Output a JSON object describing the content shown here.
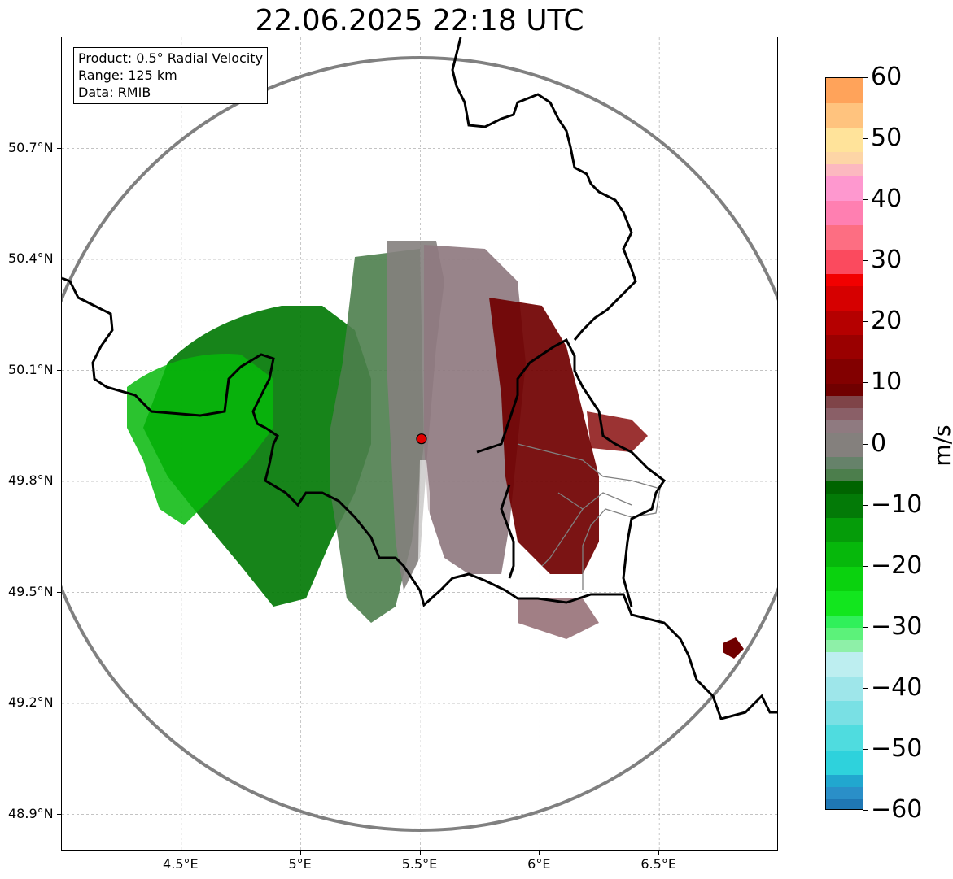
{
  "title": "22.06.2025 22:18 UTC",
  "info": {
    "product": "Product: 0.5° Radial Velocity",
    "range": "Range: 125 km",
    "data": "Data: RMIB"
  },
  "axes": {
    "lat_ticks": [
      "50.7°N",
      "50.4°N",
      "50.1°N",
      "49.8°N",
      "49.5°N",
      "49.2°N",
      "48.9°N"
    ],
    "lon_ticks": [
      "4.5°E",
      "5°E",
      "5.5°E",
      "6°E",
      "6.5°E"
    ],
    "lat_values": [
      50.7,
      50.4,
      50.1,
      49.8,
      49.5,
      49.2,
      48.9
    ],
    "lon_values": [
      4.5,
      5.0,
      5.5,
      6.0,
      6.5
    ],
    "lon_range": [
      4.0,
      7.0
    ],
    "lat_range": [
      48.8,
      51.0
    ]
  },
  "radar": {
    "lon": 5.505,
    "lat": 49.915,
    "marker_color": "#e00000"
  },
  "colorbar": {
    "unit": "m/s",
    "min": -60,
    "max": 60,
    "tick_labels": [
      "60",
      "50",
      "40",
      "30",
      "20",
      "10",
      "0",
      "−10",
      "−20",
      "−30",
      "−40",
      "−50",
      "−60"
    ],
    "tick_values": [
      60,
      50,
      40,
      30,
      20,
      10,
      0,
      -10,
      -20,
      -30,
      -40,
      -50,
      -60
    ],
    "bands": [
      {
        "from": -60,
        "to": -58,
        "color": "#1f77b4"
      },
      {
        "from": -58,
        "to": -56,
        "color": "#2a8fc8"
      },
      {
        "from": -56,
        "to": -54,
        "color": "#21a7cf"
      },
      {
        "from": -54,
        "to": -50,
        "color": "#2ed2dc"
      },
      {
        "from": -50,
        "to": -46,
        "color": "#4fdcdf"
      },
      {
        "from": -46,
        "to": -42,
        "color": "#79e0e4"
      },
      {
        "from": -42,
        "to": -38,
        "color": "#9ee6ea"
      },
      {
        "from": -38,
        "to": -34,
        "color": "#bdeef0"
      },
      {
        "from": -34,
        "to": -32,
        "color": "#8ef0a8"
      },
      {
        "from": -32,
        "to": -30,
        "color": "#5cf27a"
      },
      {
        "from": -30,
        "to": -28,
        "color": "#30f05a"
      },
      {
        "from": -28,
        "to": -24,
        "color": "#12e61e"
      },
      {
        "from": -24,
        "to": -20,
        "color": "#0ad20e"
      },
      {
        "from": -20,
        "to": -16,
        "color": "#06b80b"
      },
      {
        "from": -16,
        "to": -12,
        "color": "#059c09"
      },
      {
        "from": -12,
        "to": -8,
        "color": "#037a07"
      },
      {
        "from": -8,
        "to": -6,
        "color": "#006400"
      },
      {
        "from": -6,
        "to": -4,
        "color": "#4c7e4c"
      },
      {
        "from": -4,
        "to": -2,
        "color": "#66826a"
      },
      {
        "from": -2,
        "to": 2,
        "color": "#84807d"
      },
      {
        "from": 2,
        "to": 4,
        "color": "#8f7a80"
      },
      {
        "from": 4,
        "to": 6,
        "color": "#8a5f67"
      },
      {
        "from": 6,
        "to": 8,
        "color": "#7f4448"
      },
      {
        "from": 8,
        "to": 10,
        "color": "#700000"
      },
      {
        "from": 10,
        "to": 14,
        "color": "#820000"
      },
      {
        "from": 14,
        "to": 18,
        "color": "#9a0000"
      },
      {
        "from": 18,
        "to": 22,
        "color": "#b50000"
      },
      {
        "from": 22,
        "to": 26,
        "color": "#d60000"
      },
      {
        "from": 26,
        "to": 28,
        "color": "#f20000"
      },
      {
        "from": 28,
        "to": 32,
        "color": "#fb4a5e"
      },
      {
        "from": 32,
        "to": 36,
        "color": "#fd6e82"
      },
      {
        "from": 36,
        "to": 40,
        "color": "#ff7fb1"
      },
      {
        "from": 40,
        "to": 44,
        "color": "#fe98cf"
      },
      {
        "from": 44,
        "to": 46,
        "color": "#fcb8c0"
      },
      {
        "from": 46,
        "to": 48,
        "color": "#fdd5a6"
      },
      {
        "from": 48,
        "to": 52,
        "color": "#ffe39a"
      },
      {
        "from": 52,
        "to": 56,
        "color": "#ffc37e"
      },
      {
        "from": 56,
        "to": 60,
        "color": "#ffa35a"
      }
    ]
  },
  "colors": {
    "border": "#000000",
    "range_ring": "#808080",
    "admin_lines": "#808080",
    "grid": "#b0b0b0"
  }
}
